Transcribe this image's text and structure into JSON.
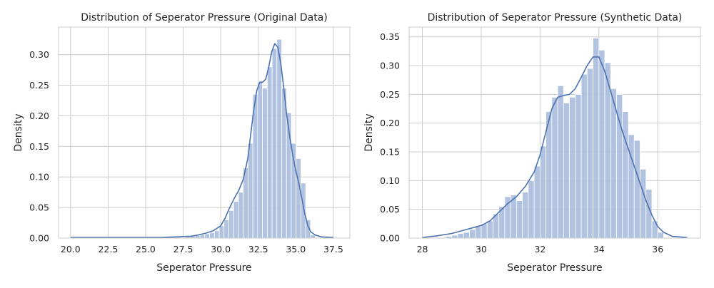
{
  "chart_data": [
    {
      "type": "histogram+kde",
      "title": "Distribution of Seperator Pressure (Original Data)",
      "xlabel": "Seperator Pressure",
      "ylabel": "Density",
      "xlim": [
        19.2,
        38.6
      ],
      "ylim": [
        0,
        0.345
      ],
      "xticks": [
        20.0,
        22.5,
        25.0,
        27.5,
        30.0,
        32.5,
        35.0,
        37.5
      ],
      "xtick_labels": [
        "20.0",
        "22.5",
        "25.0",
        "27.5",
        "30.0",
        "32.5",
        "35.0",
        "37.5"
      ],
      "yticks": [
        0,
        0.05,
        0.1,
        0.15,
        0.2,
        0.25,
        0.3
      ],
      "ytick_labels": [
        "0.00",
        "0.05",
        "0.10",
        "0.15",
        "0.20",
        "0.25",
        "0.30"
      ],
      "grid": true,
      "color": "#4c72b0",
      "bar_color": "#a9bcdd",
      "bins": {
        "edges": [
          20.3,
          20.62,
          20.94,
          21.26,
          21.58,
          21.9,
          22.22,
          22.54,
          22.86,
          23.18,
          23.5,
          23.82,
          24.14,
          24.46,
          24.78,
          25.1,
          25.42,
          25.74,
          26.06,
          26.38,
          26.7,
          27.02,
          27.34,
          27.66,
          27.98,
          28.3,
          28.62,
          28.94,
          29.26,
          29.58,
          29.9,
          30.22,
          30.54,
          30.86,
          31.18,
          31.5,
          31.82,
          32.14,
          32.46,
          32.78,
          33.1,
          33.42,
          33.74,
          34.06,
          34.38,
          34.7,
          35.02,
          35.34,
          35.66,
          35.98,
          36.3
        ],
        "heights": [
          0.001,
          0.001,
          0,
          0,
          0,
          0,
          0.001,
          0,
          0,
          0,
          0,
          0,
          0,
          0,
          0,
          0,
          0.002,
          0.002,
          0.001,
          0.002,
          0.002,
          0.002,
          0.001,
          0.002,
          0.003,
          0.004,
          0.005,
          0.007,
          0.009,
          0.012,
          0.02,
          0.03,
          0.045,
          0.06,
          0.075,
          0.115,
          0.155,
          0.235,
          0.255,
          0.245,
          0.28,
          0.31,
          0.325,
          0.245,
          0.205,
          0.155,
          0.13,
          0.09,
          0.03,
          0.005
        ]
      },
      "kde": {
        "x": [
          20.0,
          22.0,
          24.0,
          26.0,
          27.0,
          28.0,
          28.5,
          29.0,
          29.5,
          30.0,
          30.3,
          30.6,
          30.9,
          31.2,
          31.5,
          31.8,
          32.0,
          32.2,
          32.4,
          32.6,
          32.8,
          33.0,
          33.2,
          33.4,
          33.6,
          33.8,
          34.0,
          34.2,
          34.4,
          34.6,
          34.8,
          35.0,
          35.2,
          35.4,
          35.6,
          35.8,
          36.0,
          36.3,
          36.7,
          37.5
        ],
        "y": [
          0.001,
          0.001,
          0.001,
          0.001,
          0.002,
          0.003,
          0.005,
          0.008,
          0.012,
          0.02,
          0.033,
          0.05,
          0.065,
          0.078,
          0.096,
          0.13,
          0.17,
          0.21,
          0.241,
          0.255,
          0.255,
          0.26,
          0.28,
          0.305,
          0.318,
          0.312,
          0.285,
          0.245,
          0.2,
          0.165,
          0.135,
          0.11,
          0.09,
          0.065,
          0.04,
          0.02,
          0.01,
          0.005,
          0.002,
          0.001
        ]
      }
    },
    {
      "type": "histogram+kde",
      "title": "Distribution of Seperator Pressure (Synthetic Data)",
      "xlabel": "Seperator Pressure",
      "ylabel": "Density",
      "xlim": [
        27.55,
        37.45
      ],
      "ylim": [
        0,
        0.367
      ],
      "xticks": [
        28,
        30,
        32,
        34,
        36
      ],
      "xtick_labels": [
        "28",
        "30",
        "32",
        "34",
        "36"
      ],
      "yticks": [
        0,
        0.05,
        0.1,
        0.15,
        0.2,
        0.25,
        0.3,
        0.35
      ],
      "ytick_labels": [
        "0.00",
        "0.05",
        "0.10",
        "0.15",
        "0.20",
        "0.25",
        "0.30",
        "0.35"
      ],
      "grid": true,
      "color": "#4c72b0",
      "bar_color": "#a9bcdd",
      "bins": {
        "edges": [
          28.0,
          28.2,
          28.4,
          28.6,
          28.8,
          29.0,
          29.2,
          29.4,
          29.6,
          29.8,
          30.0,
          30.2,
          30.4,
          30.6,
          30.8,
          31.0,
          31.2,
          31.4,
          31.6,
          31.8,
          32.0,
          32.2,
          32.4,
          32.6,
          32.8,
          33.0,
          33.2,
          33.4,
          33.6,
          33.8,
          34.0,
          34.2,
          34.4,
          34.6,
          34.8,
          35.0,
          35.2,
          35.4,
          35.6,
          35.8,
          36.0,
          36.2
        ],
        "heights": [
          0.0,
          0.0,
          0.0,
          0.0,
          0.003,
          0.005,
          0.008,
          0.01,
          0.015,
          0.02,
          0.025,
          0.03,
          0.042,
          0.055,
          0.072,
          0.075,
          0.065,
          0.08,
          0.1,
          0.125,
          0.16,
          0.22,
          0.245,
          0.265,
          0.235,
          0.245,
          0.25,
          0.285,
          0.295,
          0.348,
          0.327,
          0.305,
          0.26,
          0.25,
          0.22,
          0.18,
          0.17,
          0.12,
          0.085,
          0.03,
          0.01
        ]
      },
      "kde": {
        "x": [
          28.0,
          28.5,
          29.0,
          29.5,
          30.0,
          30.3,
          30.6,
          30.9,
          31.2,
          31.5,
          31.8,
          32.0,
          32.2,
          32.4,
          32.6,
          32.8,
          33.0,
          33.2,
          33.4,
          33.6,
          33.8,
          34.0,
          34.2,
          34.4,
          34.6,
          34.8,
          35.0,
          35.2,
          35.4,
          35.6,
          35.8,
          36.0,
          36.2,
          36.5,
          37.0
        ],
        "y": [
          0.001,
          0.004,
          0.008,
          0.015,
          0.022,
          0.03,
          0.045,
          0.06,
          0.072,
          0.09,
          0.115,
          0.145,
          0.185,
          0.225,
          0.245,
          0.248,
          0.25,
          0.26,
          0.28,
          0.3,
          0.315,
          0.315,
          0.29,
          0.255,
          0.22,
          0.185,
          0.155,
          0.125,
          0.095,
          0.065,
          0.04,
          0.02,
          0.01,
          0.003,
          0.001
        ]
      }
    }
  ]
}
